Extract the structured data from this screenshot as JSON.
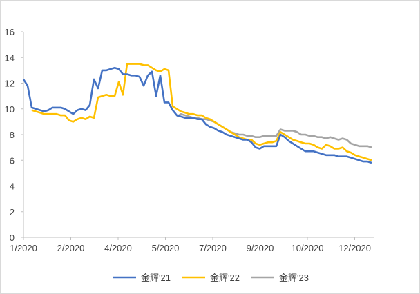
{
  "chart_data": {
    "type": "line",
    "title": "",
    "xlabel": "",
    "ylabel": "",
    "ylim": [
      0,
      16
    ],
    "y_ticks": [
      0,
      2,
      4,
      6,
      8,
      10,
      12,
      14,
      16
    ],
    "x_tick_labels": [
      "1/2020",
      "2/2020",
      "4/2020",
      "5/2020",
      "7/2020",
      "9/2020",
      "10/2020",
      "12/2020"
    ],
    "grid": false,
    "legend_position": "bottom",
    "series": [
      {
        "name": "金辉'21",
        "color": "#4472C4",
        "values": [
          12.3,
          11.8,
          10.1,
          10.0,
          9.9,
          9.8,
          9.9,
          10.1,
          10.1,
          10.1,
          10.0,
          9.8,
          9.6,
          9.9,
          10.0,
          9.9,
          10.3,
          12.3,
          11.6,
          13.0,
          13.0,
          13.1,
          13.2,
          13.1,
          12.7,
          12.7,
          12.6,
          12.6,
          12.5,
          11.8,
          12.6,
          12.9,
          11.0,
          12.6,
          10.5,
          10.5,
          9.9,
          9.5,
          9.4,
          9.3,
          9.3,
          9.3,
          9.2,
          9.2,
          8.8,
          8.6,
          8.5,
          8.3,
          8.2,
          8.0,
          7.9,
          7.8,
          7.7,
          7.6,
          7.6,
          7.4,
          7.0,
          6.9,
          7.1,
          7.1,
          7.1,
          7.1,
          8.0,
          7.8,
          7.5,
          7.3,
          7.1,
          6.9,
          6.7,
          6.7,
          6.7,
          6.6,
          6.5,
          6.4,
          6.4,
          6.4,
          6.3,
          6.3,
          6.3,
          6.2,
          6.1,
          6.0,
          5.9,
          5.9,
          5.8
        ]
      },
      {
        "name": "金辉'22",
        "color": "#FFC000",
        "values": [
          null,
          null,
          9.9,
          9.8,
          9.7,
          9.6,
          9.6,
          9.6,
          9.6,
          9.5,
          9.5,
          9.1,
          9.0,
          9.2,
          9.3,
          9.2,
          9.4,
          9.3,
          10.9,
          11.0,
          11.1,
          11.0,
          11.0,
          12.1,
          11.1,
          13.5,
          13.5,
          13.5,
          13.5,
          13.4,
          13.4,
          13.2,
          13.0,
          12.9,
          13.1,
          13.0,
          10.2,
          10.0,
          9.8,
          9.7,
          9.6,
          9.6,
          9.5,
          9.5,
          9.3,
          9.2,
          9.0,
          8.8,
          8.6,
          8.4,
          8.2,
          8.0,
          7.8,
          7.7,
          7.6,
          7.6,
          7.3,
          7.2,
          7.3,
          7.4,
          7.4,
          7.5,
          8.2,
          8.0,
          7.8,
          7.6,
          7.5,
          7.4,
          7.3,
          7.3,
          7.2,
          7.0,
          6.9,
          7.2,
          7.1,
          6.9,
          6.9,
          7.0,
          6.7,
          6.6,
          6.4,
          6.3,
          6.2,
          6.1,
          6.0
        ]
      },
      {
        "name": "金辉'23",
        "color": "#A5A5A5",
        "values": [
          null,
          null,
          null,
          null,
          null,
          null,
          null,
          null,
          null,
          null,
          null,
          null,
          null,
          null,
          null,
          null,
          null,
          null,
          null,
          null,
          null,
          null,
          null,
          null,
          null,
          null,
          null,
          null,
          null,
          null,
          null,
          null,
          null,
          null,
          null,
          null,
          null,
          9.4,
          9.6,
          9.5,
          9.4,
          9.3,
          9.3,
          9.2,
          9.2,
          9.1,
          9.0,
          8.8,
          8.6,
          8.4,
          8.2,
          8.1,
          8.0,
          8.0,
          7.9,
          7.9,
          7.8,
          7.8,
          7.9,
          7.9,
          7.9,
          7.9,
          8.4,
          8.3,
          8.3,
          8.3,
          8.2,
          8.0,
          8.0,
          7.9,
          7.9,
          7.8,
          7.8,
          7.7,
          7.8,
          7.7,
          7.6,
          7.7,
          7.6,
          7.3,
          7.2,
          7.1,
          7.1,
          7.1,
          7.0
        ]
      }
    ]
  }
}
